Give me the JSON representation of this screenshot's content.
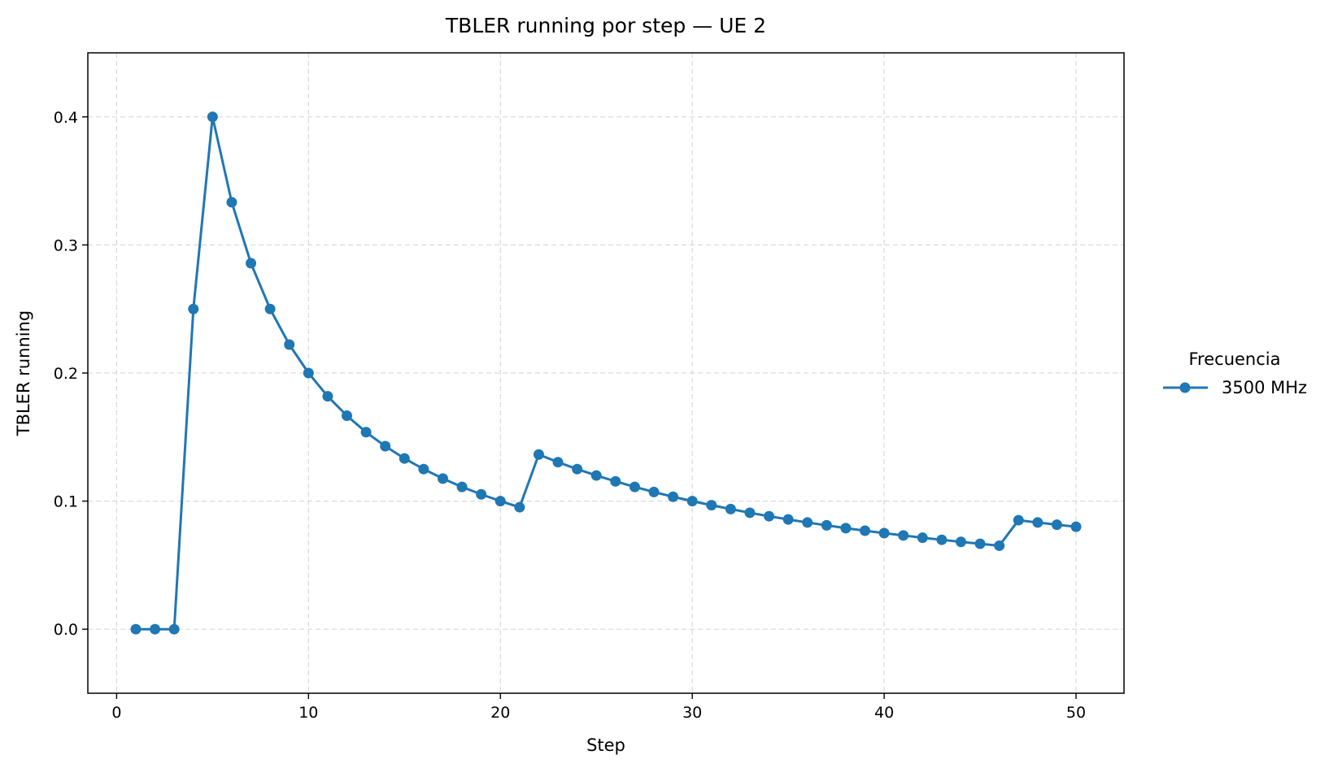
{
  "chart_data": {
    "type": "line",
    "title": "TBLER running por step — UE 2",
    "xlabel": "Step",
    "ylabel": "TBLER running",
    "xlim": [
      -1.5,
      52.5
    ],
    "ylim": [
      -0.05,
      0.45
    ],
    "xticks": [
      0,
      10,
      20,
      30,
      40,
      50
    ],
    "xtick_labels": [
      "0",
      "10",
      "20",
      "30",
      "40",
      "50"
    ],
    "yticks": [
      0.0,
      0.1,
      0.2,
      0.3,
      0.4
    ],
    "ytick_labels": [
      "0.0",
      "0.1",
      "0.2",
      "0.3",
      "0.4"
    ],
    "grid": true,
    "legend": {
      "title": "Frecuencia",
      "position": "outside-right"
    },
    "series": [
      {
        "name": "3500 MHz",
        "color": "#1f77b4",
        "x": [
          1,
          2,
          3,
          4,
          5,
          6,
          7,
          8,
          9,
          10,
          11,
          12,
          13,
          14,
          15,
          16,
          17,
          18,
          19,
          20,
          21,
          22,
          23,
          24,
          25,
          26,
          27,
          28,
          29,
          30,
          31,
          32,
          33,
          34,
          35,
          36,
          37,
          38,
          39,
          40,
          41,
          42,
          43,
          44,
          45,
          46,
          47,
          48,
          49,
          50
        ],
        "y": [
          0,
          0,
          0,
          0.25,
          0.4,
          0.3333,
          0.2857,
          0.25,
          0.2222,
          0.2,
          0.1818,
          0.1667,
          0.1538,
          0.1429,
          0.1333,
          0.125,
          0.1176,
          0.1111,
          0.1053,
          0.1,
          0.0952,
          0.1364,
          0.1304,
          0.125,
          0.12,
          0.1154,
          0.1111,
          0.1071,
          0.1034,
          0.1,
          0.0968,
          0.0938,
          0.0909,
          0.0882,
          0.0857,
          0.0833,
          0.0811,
          0.0789,
          0.0769,
          0.075,
          0.0732,
          0.0714,
          0.0698,
          0.0682,
          0.0667,
          0.0652,
          0.0851,
          0.0833,
          0.0816,
          0.08
        ]
      }
    ]
  }
}
